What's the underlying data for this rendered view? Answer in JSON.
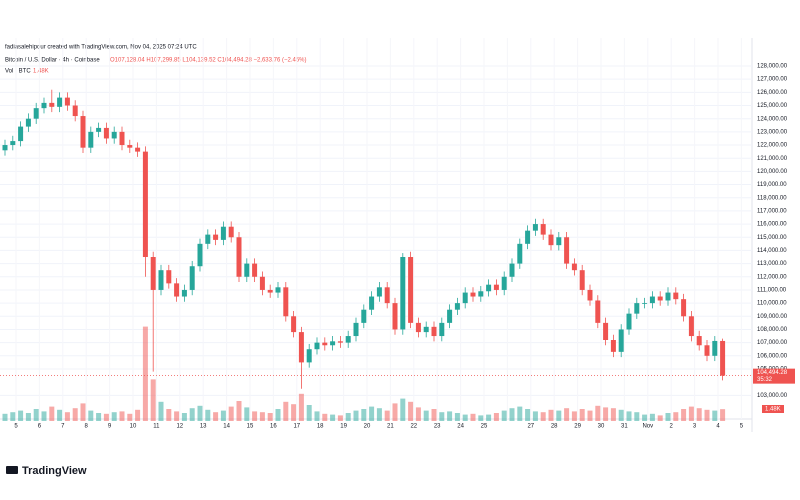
{
  "chart_data": {
    "type": "candlestick",
    "credit": "fadiasalehipour created with TradingView.com, Nov 04, 2025 07:24 UTC",
    "title": "Bitcoin / U.S. Dollar · 4h · Coinbase",
    "ohlc_label": "O107,128.04 H107,299.85 L104,139.52 C104,494.28 −2,633.76 (−2.45%)",
    "volume_title": "Vol · BTC",
    "volume_last_label": "1.48K",
    "last_price_label": "104,494.28",
    "countdown": "35:32",
    "brand": "TradingView",
    "up_color": "#26a69a",
    "down_color": "#ef5350",
    "grid": true,
    "x_labels": [
      "5",
      "6",
      "7",
      "8",
      "9",
      "10",
      "11",
      "12",
      "13",
      "14",
      "15",
      "16",
      "17",
      "18",
      "19",
      "20",
      "21",
      "22",
      "23",
      "24",
      "25",
      null,
      "27",
      "28",
      "29",
      "30",
      "31",
      "Nov",
      "2",
      "3",
      "4",
      "5"
    ],
    "ylim": [
      102000,
      130000
    ],
    "yticks": [
      {
        "value": 103000,
        "label": "103,000.00"
      },
      {
        "value": 105000,
        "label": "105,000.00"
      },
      {
        "value": 106000,
        "label": "106,000.00"
      },
      {
        "value": 107000,
        "label": "107,000.00"
      },
      {
        "value": 108000,
        "label": "108,000.00"
      },
      {
        "value": 109000,
        "label": "109,000.00"
      },
      {
        "value": 110000,
        "label": "110,000.00"
      },
      {
        "value": 111000,
        "label": "111,000.00"
      },
      {
        "value": 112000,
        "label": "112,000.00"
      },
      {
        "value": 113000,
        "label": "113,000.00"
      },
      {
        "value": 114000,
        "label": "114,000.00"
      },
      {
        "value": 115000,
        "label": "115,000.00"
      },
      {
        "value": 116000,
        "label": "116,000.00"
      },
      {
        "value": 117000,
        "label": "117,000.00"
      },
      {
        "value": 118000,
        "label": "118,000.00"
      },
      {
        "value": 119000,
        "label": "119,000.00"
      },
      {
        "value": 120000,
        "label": "120,000.00"
      },
      {
        "value": 121000,
        "label": "121,000.00"
      },
      {
        "value": 122000,
        "label": "122,000.00"
      },
      {
        "value": 123000,
        "label": "123,000.00"
      },
      {
        "value": 124000,
        "label": "124,000.00"
      },
      {
        "value": 125000,
        "label": "125,000.00"
      },
      {
        "value": 126000,
        "label": "126,000.00"
      },
      {
        "value": 127000,
        "label": "127,000.00"
      },
      {
        "value": 128000,
        "label": "128,000.00"
      }
    ],
    "volume_ylim": [
      0,
      50000
    ],
    "open": [
      121600,
      122000,
      122300,
      123400,
      124000,
      124800,
      125200,
      124900,
      125600,
      125000,
      124200,
      121800,
      123000,
      123300,
      122500,
      123000,
      122000,
      121800,
      121500,
      113500,
      111000,
      112500,
      111500,
      110500,
      111000,
      112800,
      114500,
      115200,
      114800,
      115800,
      115000,
      112000,
      113000,
      112000,
      111000,
      110800,
      111200,
      109000,
      107800,
      105500,
      106500,
      107000,
      106800,
      107100,
      107000,
      107500,
      108500,
      109500,
      110500,
      111200,
      110000,
      108000,
      113500,
      108500,
      107800,
      108200,
      107500,
      108500,
      109500,
      110000,
      110800,
      110500,
      110900,
      111400,
      111000,
      112000,
      113000,
      114500,
      115500,
      116000,
      115200,
      114400,
      115000,
      113000,
      112500,
      111000,
      110200,
      108500,
      107200,
      106300,
      108000,
      109200,
      110000,
      110000,
      110500,
      110200,
      110800,
      110300,
      109000,
      107500,
      106800,
      106000,
      107128.04
    ],
    "high": [
      122400,
      122700,
      123800,
      124400,
      125200,
      125600,
      126200,
      126000,
      126000,
      125400,
      124600,
      123400,
      123700,
      123700,
      123400,
      123400,
      122400,
      122200,
      121900,
      113900,
      112900,
      112900,
      111900,
      111400,
      113200,
      114900,
      115600,
      115600,
      116200,
      116200,
      115400,
      113400,
      113400,
      112400,
      111400,
      111600,
      111600,
      109400,
      108200,
      106900,
      107400,
      107400,
      107500,
      107500,
      107900,
      108900,
      109900,
      110900,
      111600,
      111600,
      110400,
      113800,
      113900,
      108900,
      108600,
      108600,
      108900,
      109900,
      110400,
      111200,
      111200,
      111300,
      111800,
      111800,
      112400,
      113400,
      114900,
      115900,
      116400,
      116400,
      115600,
      115400,
      115400,
      113400,
      112900,
      111400,
      110600,
      108900,
      107600,
      108400,
      109600,
      110400,
      110400,
      110900,
      110900,
      111200,
      111200,
      110700,
      109400,
      107900,
      107200,
      107500,
      107299.85
    ],
    "low": [
      121200,
      121600,
      121900,
      123000,
      123600,
      124400,
      124500,
      124500,
      124600,
      123800,
      121400,
      121400,
      122600,
      122100,
      122100,
      121600,
      121400,
      121100,
      112000,
      104800,
      110600,
      111100,
      110100,
      110100,
      110600,
      112400,
      114100,
      114400,
      114400,
      114600,
      111600,
      111600,
      111600,
      110600,
      110400,
      110400,
      108600,
      107400,
      103500,
      105100,
      106100,
      106400,
      106400,
      106600,
      106600,
      107100,
      108100,
      109100,
      110100,
      109600,
      107600,
      107600,
      108100,
      107400,
      107400,
      107100,
      107100,
      108100,
      109100,
      109600,
      110100,
      110100,
      110500,
      110600,
      110600,
      111600,
      112600,
      114100,
      115100,
      114800,
      114000,
      114000,
      112600,
      112100,
      110600,
      109800,
      108100,
      106800,
      105900,
      105900,
      107600,
      108800,
      109600,
      109600,
      109800,
      109800,
      109900,
      108600,
      107100,
      106400,
      105600,
      105600,
      104139.52
    ],
    "close": [
      122000,
      122300,
      123400,
      124000,
      124800,
      125200,
      124900,
      125600,
      125000,
      124200,
      121800,
      123000,
      123300,
      122500,
      123000,
      122000,
      121800,
      121500,
      113500,
      111000,
      112500,
      111500,
      110500,
      111000,
      112800,
      114500,
      115200,
      114800,
      115800,
      115000,
      112000,
      113000,
      112000,
      111000,
      110800,
      111200,
      109000,
      107800,
      105500,
      106500,
      107000,
      106800,
      107100,
      107000,
      107500,
      108500,
      109500,
      110500,
      111200,
      110000,
      108000,
      113500,
      108500,
      107800,
      108200,
      107500,
      108500,
      109500,
      110000,
      110800,
      110500,
      110900,
      111400,
      111000,
      112000,
      113000,
      114500,
      115500,
      116000,
      115200,
      114400,
      115000,
      113000,
      112500,
      111000,
      110200,
      108500,
      107200,
      106300,
      108000,
      109200,
      110000,
      110000,
      110500,
      110200,
      110800,
      110300,
      109000,
      107500,
      106800,
      106000,
      107128.04,
      104494.28
    ],
    "volume": [
      900,
      1100,
      1300,
      1000,
      1500,
      1200,
      1800,
      1400,
      1100,
      1600,
      2200,
      1300,
      1000,
      900,
      1100,
      1200,
      900,
      1400,
      11800,
      5200,
      2400,
      1500,
      1200,
      1000,
      1600,
      1900,
      1400,
      1100,
      1300,
      1800,
      2500,
      1700,
      1200,
      1100,
      1000,
      1500,
      2400,
      2100,
      3400,
      2000,
      1200,
      900,
      800,
      700,
      1000,
      1300,
      1500,
      1800,
      1600,
      1300,
      2200,
      2800,
      2400,
      1700,
      1300,
      1500,
      1100,
      1200,
      1000,
      800,
      900,
      700,
      800,
      1000,
      1300,
      1600,
      1800,
      1500,
      1200,
      1100,
      1400,
      1300,
      1600,
      1200,
      1500,
      1300,
      1900,
      1700,
      1600,
      1400,
      1200,
      1100,
      800,
      900,
      700,
      1000,
      1100,
      1500,
      1800,
      1600,
      1400,
      1300,
      1480
    ]
  }
}
